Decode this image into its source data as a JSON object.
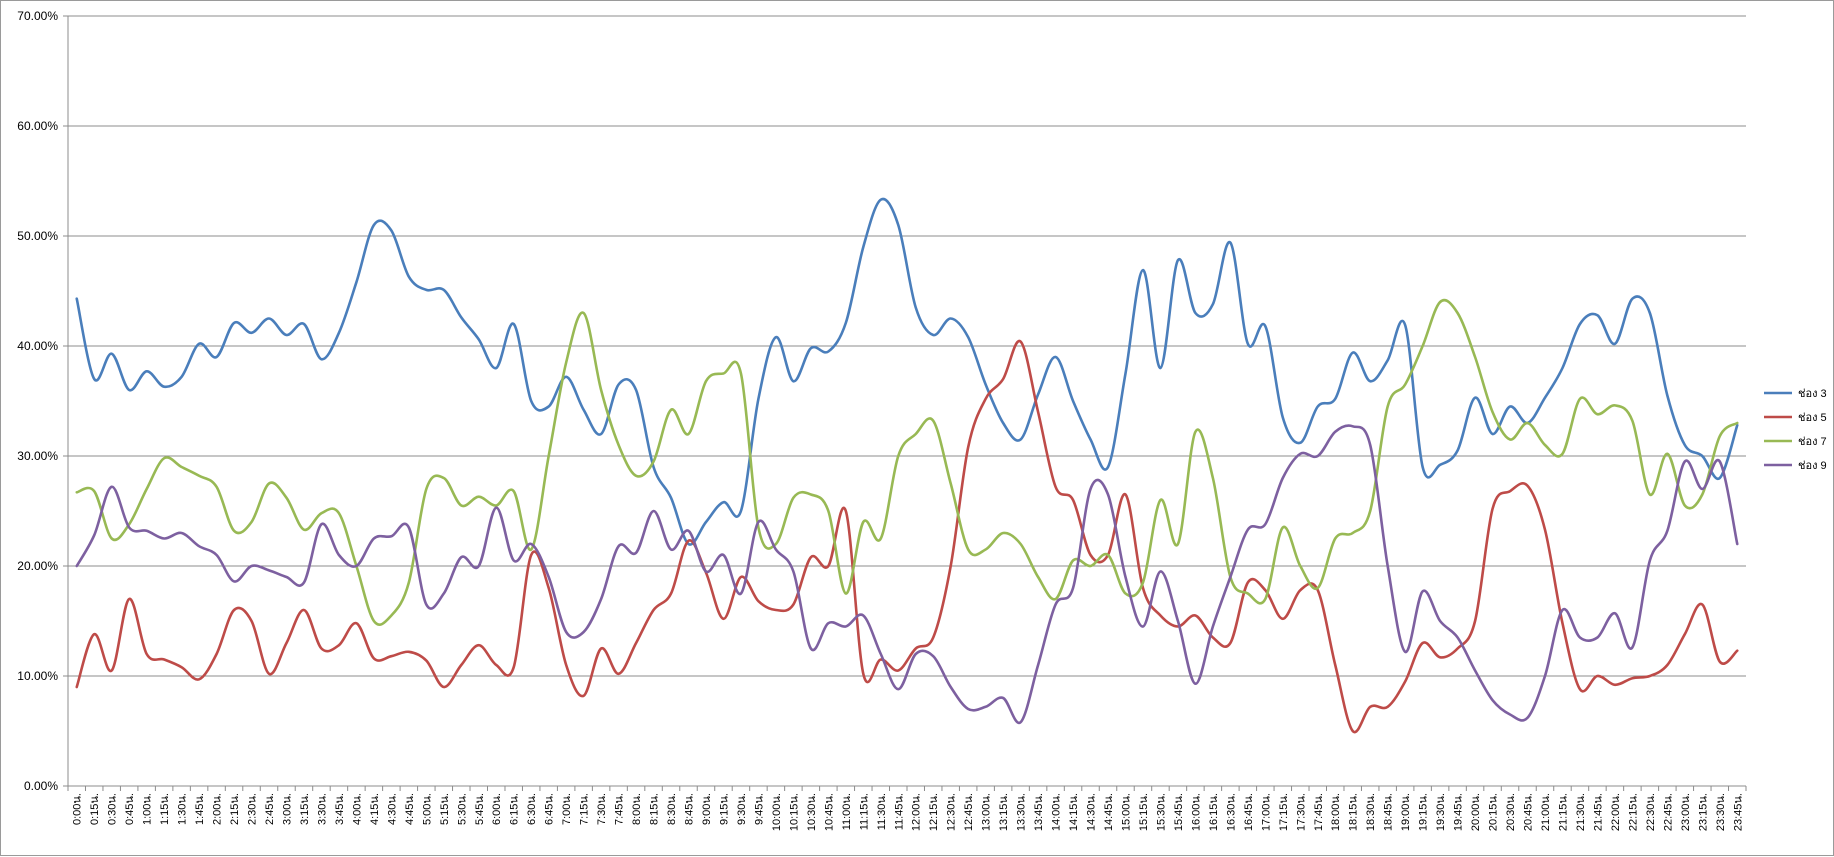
{
  "chart_data": {
    "type": "line",
    "title": "",
    "xlabel": "",
    "ylabel": "",
    "ylim": [
      0,
      0.7
    ],
    "yticks": [
      "0.00%",
      "10.00%",
      "20.00%",
      "30.00%",
      "40.00%",
      "50.00%",
      "60.00%",
      "70.00%"
    ],
    "grid": "horizontal",
    "legend_position": "right",
    "categories": [
      "0:00น.",
      "0:15น.",
      "0:30น.",
      "0:45น.",
      "1:00น.",
      "1:15น.",
      "1:30น.",
      "1:45น.",
      "2:00น.",
      "2:15น.",
      "2:30น.",
      "2:45น.",
      "3:00น.",
      "3:15น.",
      "3:30น.",
      "3:45น.",
      "4:00น.",
      "4:15น.",
      "4:30น.",
      "4:45น.",
      "5:00น.",
      "5:15น.",
      "5:30น.",
      "5:45น.",
      "6:00น.",
      "6:15น.",
      "6:30น.",
      "6:45น.",
      "7:00น.",
      "7:15น.",
      "7:30น.",
      "7:45น.",
      "8:00น.",
      "8:15น.",
      "8:30น.",
      "8:45น.",
      "9:00น.",
      "9:15น.",
      "9:30น.",
      "9:45น.",
      "10:00น.",
      "10:15น.",
      "10:30น.",
      "10:45น.",
      "11:00น.",
      "11:15น.",
      "11:30น.",
      "11:45น.",
      "12:00น.",
      "12:15น.",
      "12:30น.",
      "12:45น.",
      "13:00น.",
      "13:15น.",
      "13:30น.",
      "13:45น.",
      "14:00น.",
      "14:15น.",
      "14:30น.",
      "14:45น.",
      "15:00น.",
      "15:15น.",
      "15:30น.",
      "15:45น.",
      "16:00น.",
      "16:15น.",
      "16:30น.",
      "16:45น.",
      "17:00น.",
      "17:15น.",
      "17:30น.",
      "17:45น.",
      "18:00น.",
      "18:15น.",
      "18:30น.",
      "18:45น.",
      "19:00น.",
      "19:15น.",
      "19:30น.",
      "19:45น.",
      "20:00น.",
      "20:15น.",
      "20:30น.",
      "20:45น.",
      "21:00น.",
      "21:15น.",
      "21:30น.",
      "21:45น.",
      "22:00น.",
      "22:15น.",
      "22:30น.",
      "22:45น.",
      "23:00น.",
      "23:15น.",
      "23:30น.",
      "23:45น."
    ],
    "series": [
      {
        "name": "ช่อง 3",
        "color": "#4a7ebb",
        "values": [
          0.443,
          0.37,
          0.393,
          0.36,
          0.377,
          0.363,
          0.372,
          0.402,
          0.39,
          0.421,
          0.412,
          0.425,
          0.41,
          0.42,
          0.388,
          0.412,
          0.458,
          0.51,
          0.505,
          0.463,
          0.451,
          0.451,
          0.426,
          0.406,
          0.38,
          0.42,
          0.35,
          0.345,
          0.372,
          0.342,
          0.32,
          0.365,
          0.36,
          0.29,
          0.262,
          0.22,
          0.24,
          0.258,
          0.25,
          0.352,
          0.408,
          0.368,
          0.398,
          0.395,
          0.421,
          0.49,
          0.533,
          0.51,
          0.435,
          0.41,
          0.425,
          0.408,
          0.365,
          0.33,
          0.315,
          0.356,
          0.39,
          0.35,
          0.315,
          0.29,
          0.375,
          0.469,
          0.38,
          0.478,
          0.43,
          0.438,
          0.494,
          0.402,
          0.418,
          0.335,
          0.312,
          0.345,
          0.352,
          0.394,
          0.368,
          0.387,
          0.419,
          0.29,
          0.292,
          0.305,
          0.353,
          0.32,
          0.345,
          0.33,
          0.353,
          0.38,
          0.42,
          0.428,
          0.402,
          0.443,
          0.43,
          0.355,
          0.31,
          0.3,
          0.28,
          0.328
        ]
      },
      {
        "name": "ช่อง 5",
        "color": "#be4b48",
        "values": [
          0.09,
          0.138,
          0.105,
          0.17,
          0.12,
          0.115,
          0.108,
          0.097,
          0.12,
          0.16,
          0.15,
          0.102,
          0.13,
          0.16,
          0.125,
          0.128,
          0.148,
          0.116,
          0.118,
          0.122,
          0.114,
          0.09,
          0.11,
          0.128,
          0.11,
          0.108,
          0.21,
          0.18,
          0.11,
          0.082,
          0.125,
          0.102,
          0.13,
          0.16,
          0.175,
          0.223,
          0.194,
          0.152,
          0.19,
          0.168,
          0.16,
          0.165,
          0.208,
          0.2,
          0.25,
          0.102,
          0.115,
          0.105,
          0.125,
          0.135,
          0.2,
          0.308,
          0.352,
          0.37,
          0.404,
          0.34,
          0.272,
          0.26,
          0.21,
          0.21,
          0.265,
          0.18,
          0.155,
          0.145,
          0.155,
          0.135,
          0.13,
          0.185,
          0.178,
          0.152,
          0.178,
          0.178,
          0.11,
          0.05,
          0.072,
          0.072,
          0.095,
          0.13,
          0.117,
          0.125,
          0.15,
          0.252,
          0.268,
          0.273,
          0.233,
          0.148,
          0.088,
          0.1,
          0.092,
          0.098,
          0.1,
          0.11,
          0.138,
          0.165,
          0.113,
          0.123
        ]
      },
      {
        "name": "ช่อง 7",
        "color": "#98b954",
        "values": [
          0.267,
          0.268,
          0.225,
          0.238,
          0.27,
          0.298,
          0.29,
          0.282,
          0.272,
          0.232,
          0.24,
          0.275,
          0.262,
          0.233,
          0.248,
          0.248,
          0.2,
          0.15,
          0.155,
          0.185,
          0.27,
          0.28,
          0.255,
          0.263,
          0.255,
          0.268,
          0.215,
          0.3,
          0.385,
          0.43,
          0.36,
          0.31,
          0.282,
          0.295,
          0.342,
          0.32,
          0.368,
          0.375,
          0.375,
          0.235,
          0.22,
          0.262,
          0.265,
          0.25,
          0.175,
          0.24,
          0.225,
          0.3,
          0.32,
          0.332,
          0.275,
          0.215,
          0.215,
          0.23,
          0.22,
          0.19,
          0.17,
          0.205,
          0.2,
          0.21,
          0.175,
          0.185,
          0.26,
          0.22,
          0.322,
          0.28,
          0.19,
          0.175,
          0.17,
          0.235,
          0.2,
          0.18,
          0.225,
          0.23,
          0.25,
          0.345,
          0.365,
          0.4,
          0.44,
          0.43,
          0.39,
          0.34,
          0.315,
          0.33,
          0.31,
          0.302,
          0.352,
          0.338,
          0.346,
          0.332,
          0.265,
          0.302,
          0.255,
          0.265,
          0.318,
          0.33
        ]
      },
      {
        "name": "ช่อง 9",
        "color": "#7d60a0",
        "values": [
          0.2,
          0.228,
          0.272,
          0.235,
          0.232,
          0.225,
          0.23,
          0.218,
          0.21,
          0.186,
          0.2,
          0.196,
          0.19,
          0.185,
          0.238,
          0.21,
          0.2,
          0.225,
          0.227,
          0.235,
          0.165,
          0.175,
          0.208,
          0.2,
          0.253,
          0.205,
          0.22,
          0.19,
          0.14,
          0.14,
          0.17,
          0.218,
          0.212,
          0.25,
          0.215,
          0.232,
          0.195,
          0.21,
          0.175,
          0.24,
          0.215,
          0.195,
          0.125,
          0.148,
          0.145,
          0.155,
          0.12,
          0.088,
          0.12,
          0.118,
          0.09,
          0.07,
          0.072,
          0.08,
          0.058,
          0.11,
          0.165,
          0.18,
          0.27,
          0.265,
          0.19,
          0.145,
          0.195,
          0.15,
          0.093,
          0.145,
          0.19,
          0.233,
          0.238,
          0.28,
          0.302,
          0.3,
          0.322,
          0.327,
          0.31,
          0.2,
          0.122,
          0.177,
          0.15,
          0.135,
          0.105,
          0.078,
          0.065,
          0.062,
          0.1,
          0.16,
          0.135,
          0.135,
          0.157,
          0.126,
          0.205,
          0.232,
          0.295,
          0.27,
          0.295,
          0.22
        ]
      }
    ]
  }
}
